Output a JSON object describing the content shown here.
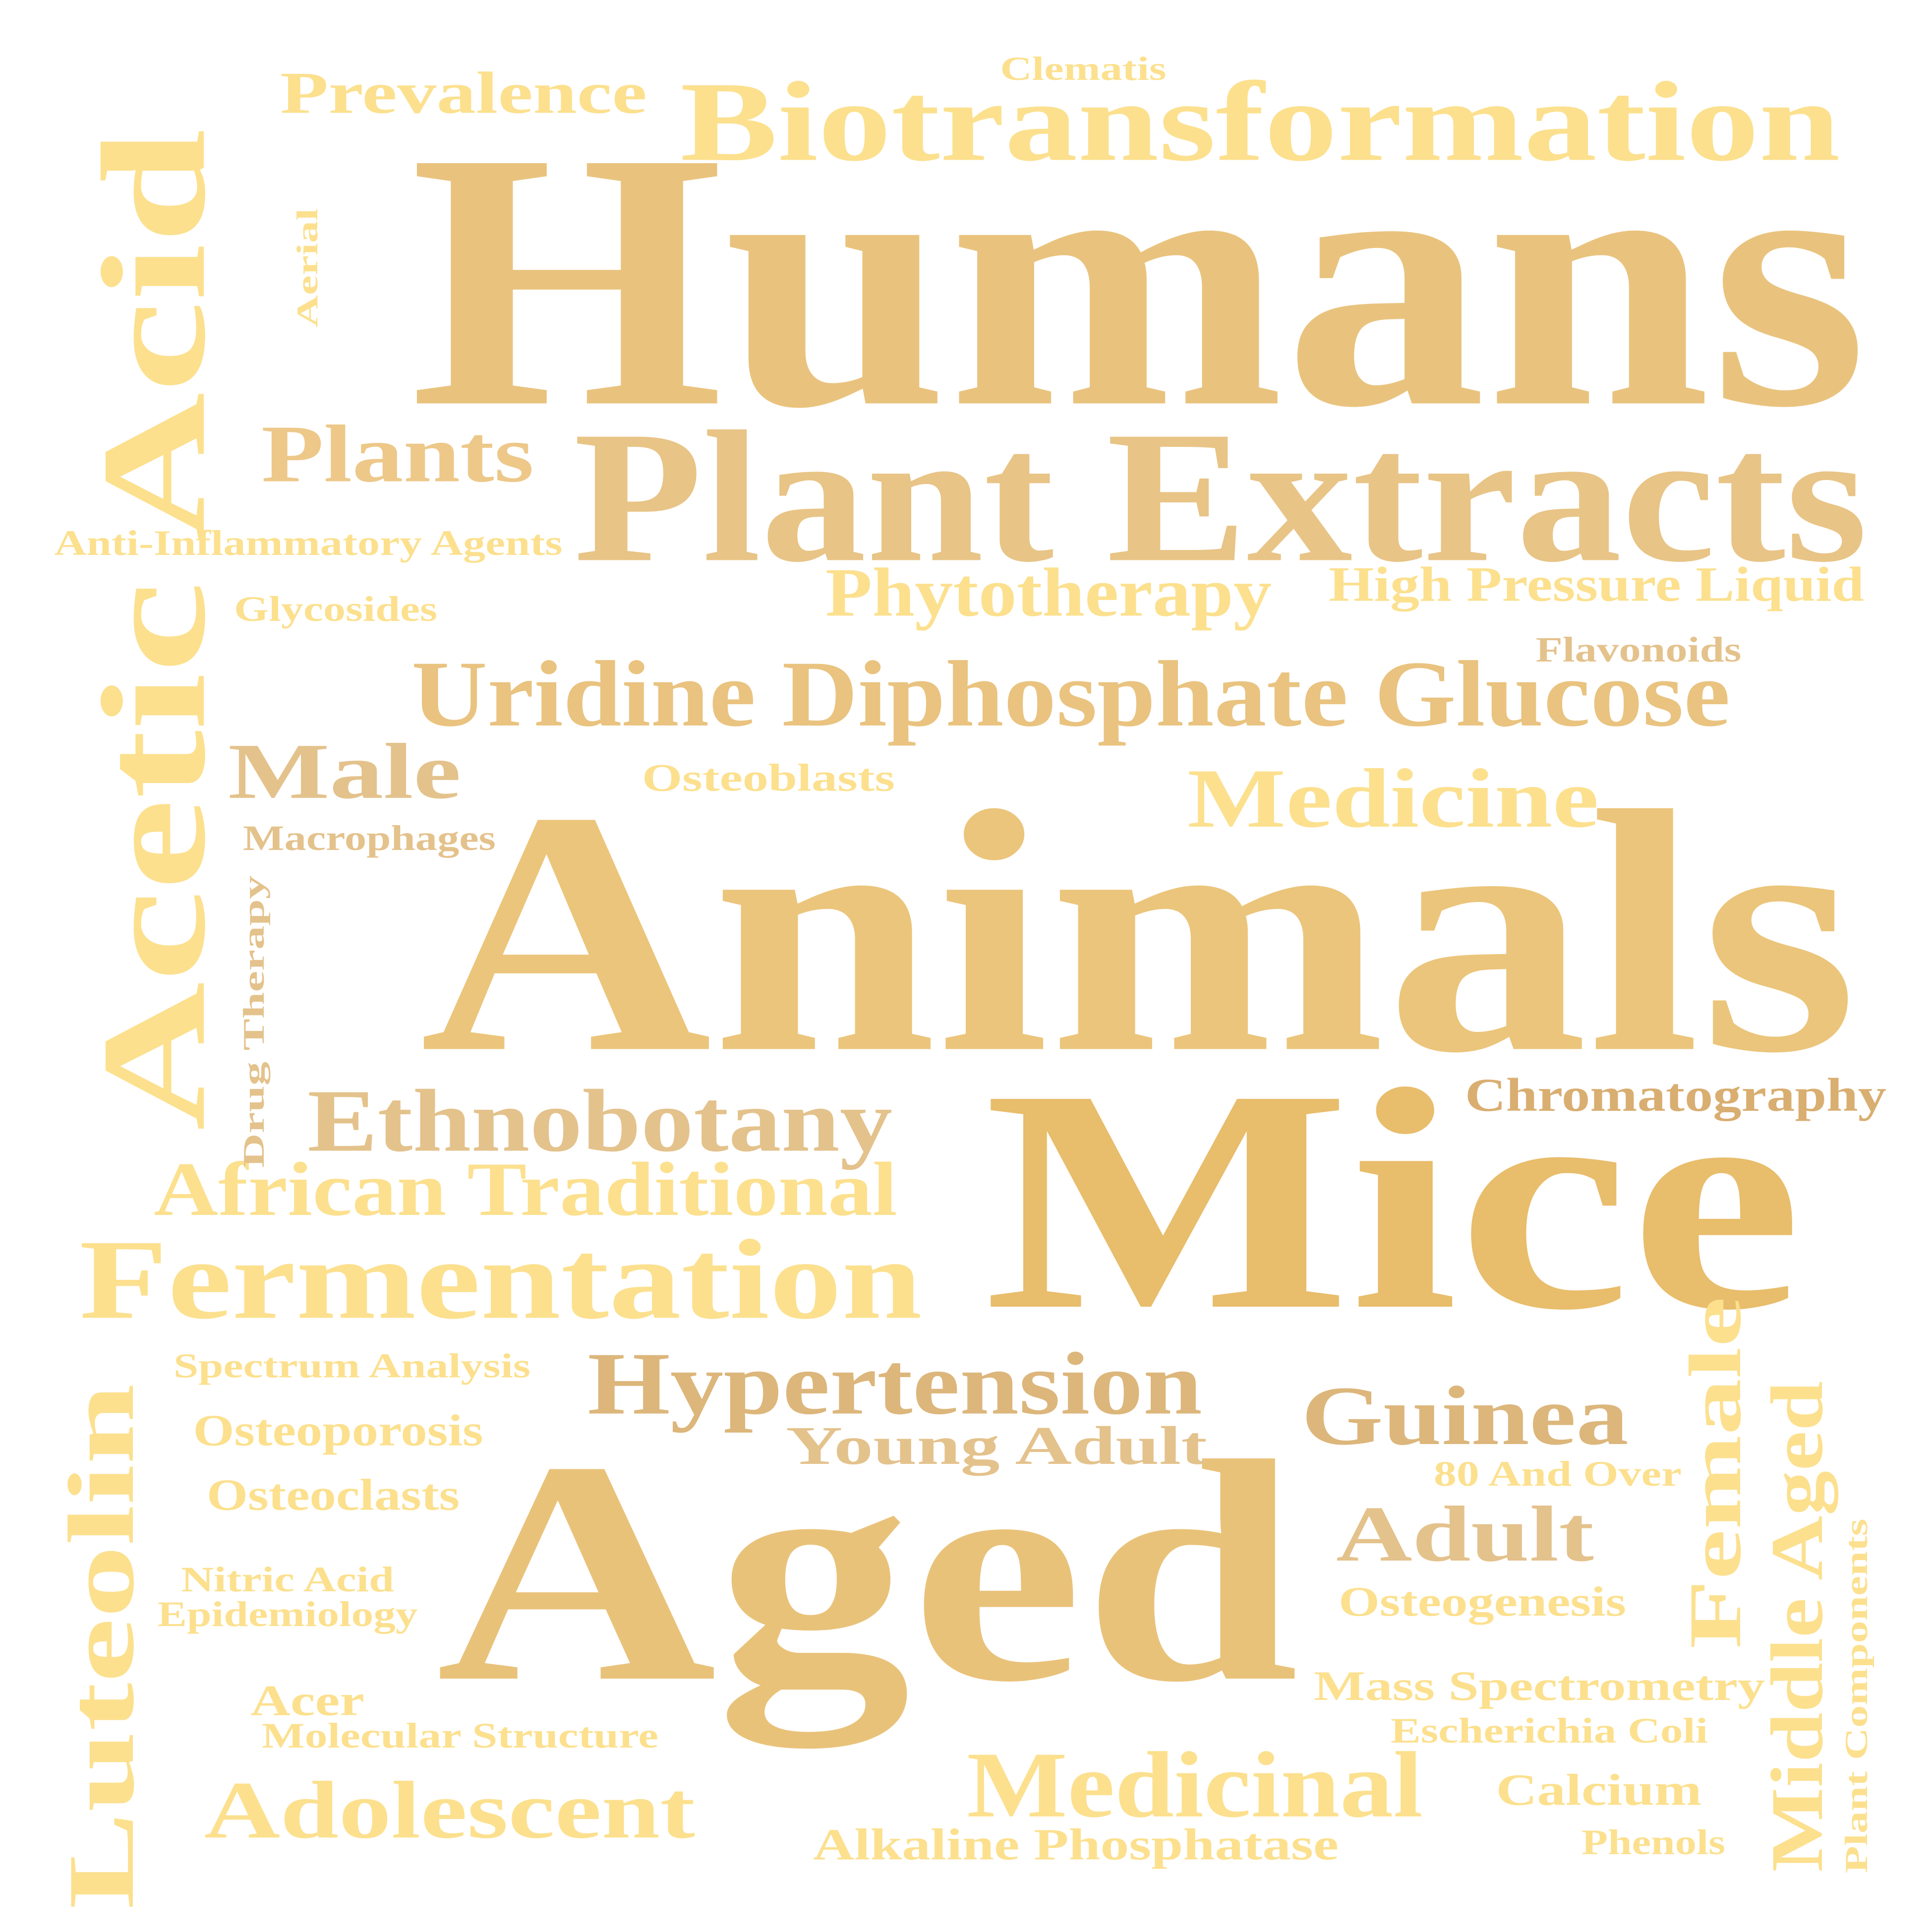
{
  "words": [
    {
      "key": "humans",
      "text": "Humans",
      "color": "#E9C37E"
    },
    {
      "key": "animals",
      "text": "Animals",
      "color": "#EBC57B"
    },
    {
      "key": "mice",
      "text": "Mice",
      "color": "#E8BD6B"
    },
    {
      "key": "aged",
      "text": "Aged",
      "color": "#E9C27A"
    },
    {
      "key": "plant_extracts",
      "text": "Plant Extracts",
      "color": "#E8C486"
    },
    {
      "key": "biotransformation",
      "text": "Biotransformation",
      "color": "#FCE08E"
    },
    {
      "key": "acetic_acid",
      "text": "Acetic Acid",
      "color": "#FCE08E"
    },
    {
      "key": "uridine_diphosphate_glucose",
      "text": "Uridine Diphosphate Glucose",
      "color": "#E9C37F"
    },
    {
      "key": "fermentation",
      "text": "Fermentation",
      "color": "#FCE08E"
    },
    {
      "key": "ethnobotany",
      "text": "Ethnobotany",
      "color": "#E4C28C"
    },
    {
      "key": "african_traditional",
      "text": "African Traditional",
      "color": "#FCE08E"
    },
    {
      "key": "hypertension",
      "text": "Hypertension",
      "color": "#DCB67B"
    },
    {
      "key": "luteolin",
      "text": "Luteolin",
      "color": "#FCE08E"
    },
    {
      "key": "medicinal",
      "text": "Medicinal",
      "color": "#FCE08E"
    },
    {
      "key": "medicine",
      "text": "Medicine",
      "color": "#FCE08E"
    },
    {
      "key": "guinea",
      "text": "Guinea",
      "color": "#DCB67B"
    },
    {
      "key": "phytotherapy",
      "text": "Phytotherapy",
      "color": "#FCE08E"
    },
    {
      "key": "plants",
      "text": "Plants",
      "color": "#EDC889"
    },
    {
      "key": "adolescent",
      "text": "Adolescent",
      "color": "#FCE08E"
    },
    {
      "key": "prevalence",
      "text": "Prevalence",
      "color": "#FCE08E"
    },
    {
      "key": "male",
      "text": "Male",
      "color": "#E4C28C"
    },
    {
      "key": "adult",
      "text": "Adult",
      "color": "#E4C28C"
    },
    {
      "key": "young_adult",
      "text": "Young Adult",
      "color": "#E4C28C"
    },
    {
      "key": "female",
      "text": "Female",
      "color": "#FCE08E"
    },
    {
      "key": "middle_aged",
      "text": "Middle Aged",
      "color": "#FCE08E"
    },
    {
      "key": "high_pressure_liquid",
      "text": "High Pressure Liquid",
      "color": "#FCE08E"
    },
    {
      "key": "chromatography",
      "text": "Chromatography",
      "color": "#D9AE71"
    },
    {
      "key": "osteoporosis",
      "text": "Osteoporosis",
      "color": "#FCE08E"
    },
    {
      "key": "osteoclasts",
      "text": "Osteoclasts",
      "color": "#FCE08E"
    },
    {
      "key": "alkaline_phosphatase",
      "text": "Alkaline Phosphatase",
      "color": "#FCE08E"
    },
    {
      "key": "mass_spectrometry",
      "text": "Mass Spectrometry",
      "color": "#FCE08E"
    },
    {
      "key": "calcium",
      "text": "Calcium",
      "color": "#FCE08E"
    },
    {
      "key": "osteogenesis",
      "text": "Osteogenesis",
      "color": "#FCE08E"
    },
    {
      "key": "anti_inflammatory_agents",
      "text": "Anti-Inflammatory Agents",
      "color": "#FCE08E"
    },
    {
      "key": "macrophages",
      "text": "Macrophages",
      "color": "#E4C28C"
    },
    {
      "key": "spectrum_analysis",
      "text": "Spectrum Analysis",
      "color": "#FCE08E"
    },
    {
      "key": "osteoblasts",
      "text": "Osteoblasts",
      "color": "#FCE08E"
    },
    {
      "key": "glycosides",
      "text": "Glycosides",
      "color": "#FCE08E"
    },
    {
      "key": "drug_therapy",
      "text": "Drug Therapy",
      "color": "#E4C28C"
    },
    {
      "key": "flavonoids",
      "text": "Flavonoids",
      "color": "#E4C28C"
    },
    {
      "key": "acer",
      "text": "Acer",
      "color": "#FCE08E"
    },
    {
      "key": "molecular_structure",
      "text": "Molecular Structure",
      "color": "#FCE08E"
    },
    {
      "key": "nitric_acid",
      "text": "Nitric Acid",
      "color": "#FCE08E"
    },
    {
      "key": "epidemiology",
      "text": "Epidemiology",
      "color": "#FCE08E"
    },
    {
      "key": "escherichia_coli",
      "text": "Escherichia Coli",
      "color": "#FCE08E"
    },
    {
      "key": "phenols",
      "text": "Phenols",
      "color": "#FCE08E"
    },
    {
      "key": "eighty_and_over",
      "text": "80 And Over",
      "color": "#FCE08E"
    },
    {
      "key": "plant_components",
      "text": "Plant Components",
      "color": "#FCE08E"
    },
    {
      "key": "clematis",
      "text": "Clematis",
      "color": "#FCE08E"
    },
    {
      "key": "aerial",
      "text": "Aerial",
      "color": "#FCE08E"
    }
  ]
}
